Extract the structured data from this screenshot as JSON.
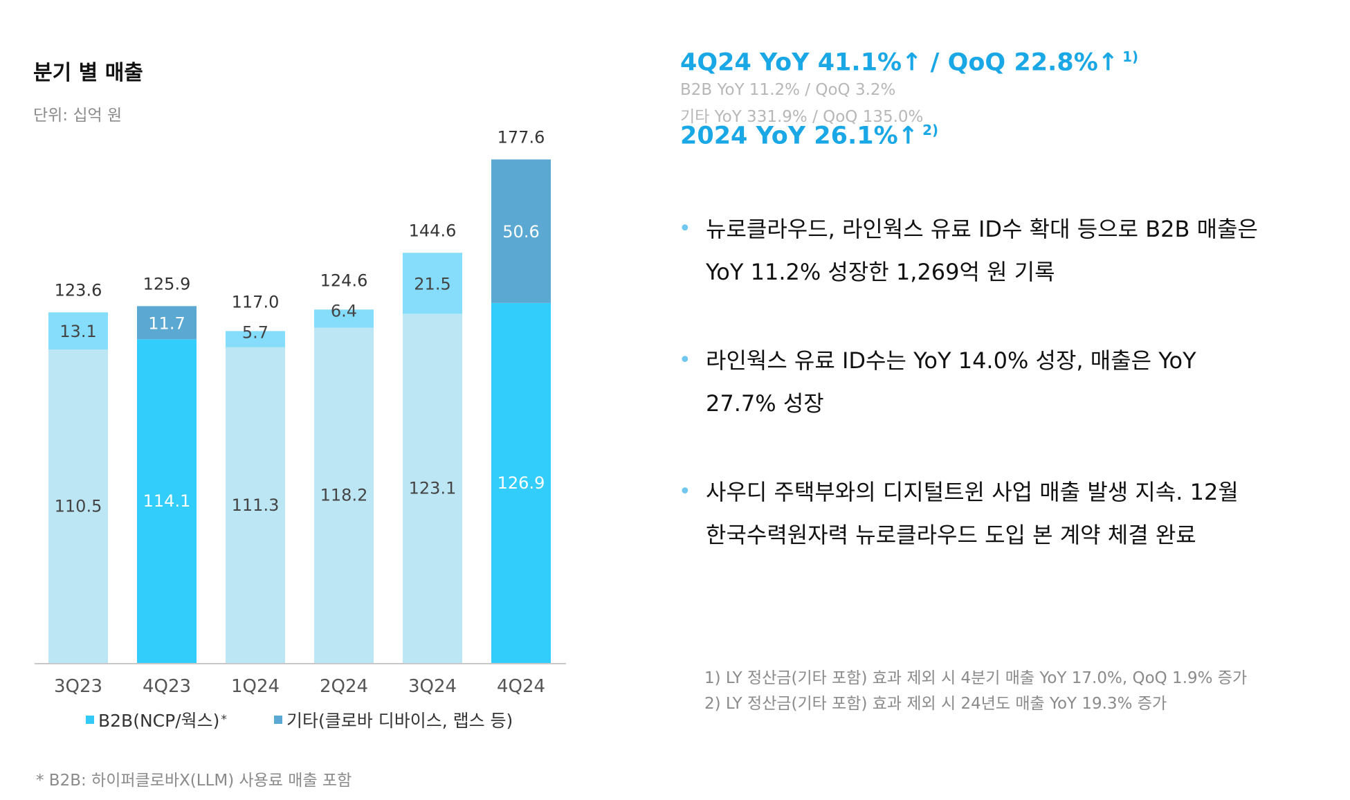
{
  "left": {
    "title": "분기 별 매출",
    "unit": "단위: 십억 원",
    "legend": [
      {
        "label": "B2B(NCP/웍스)",
        "sup": "*",
        "color": "#33c9f7"
      },
      {
        "label": "기타(클로바 디바이스, 랩스 등)",
        "color": "#5ba9d2"
      }
    ],
    "footnote": "* B2B: 하이퍼클로바X(LLM) 사용료 매출 포함"
  },
  "chart_data": {
    "type": "bar",
    "stacked": true,
    "categories": [
      "3Q23",
      "4Q23",
      "1Q24",
      "2Q24",
      "3Q24",
      "4Q24"
    ],
    "series": [
      {
        "name": "B2B(NCP/웍스)",
        "values": [
          110.5,
          114.1,
          111.3,
          118.2,
          123.1,
          126.9
        ],
        "labels": [
          "110.5",
          "114.1",
          "111.3",
          "118.2",
          "123.1",
          "126.9"
        ]
      },
      {
        "name": "기타(클로바 디바이스, 랩스 등)",
        "values": [
          13.1,
          11.7,
          5.7,
          6.4,
          21.5,
          50.6
        ],
        "labels": [
          "13.1",
          "11.7",
          "5.7",
          "6.4",
          "21.5",
          "50.6"
        ]
      }
    ],
    "totals": [
      123.6,
      125.9,
      117.0,
      124.6,
      144.6,
      177.6
    ],
    "total_labels": [
      "123.6",
      "125.9",
      "117.0",
      "124.6",
      "144.6",
      "177.6"
    ],
    "ylim": [
      0,
      177.6
    ],
    "colors": {
      "b2b_light": "#bde6f4",
      "b2b_strong": "#33cdfc",
      "etc_light": "#86dcfb",
      "etc_strong": "#5ba9d2",
      "label_on_light": "#444444",
      "label_on_strong": "#ffffff",
      "total": "#333333"
    },
    "highlight_b2b": [
      false,
      true,
      false,
      false,
      false,
      true
    ],
    "highlight_etc": [
      false,
      true,
      false,
      false,
      false,
      true
    ]
  },
  "right": {
    "headline1": {
      "text": "4Q24 YoY 41.1%↑  / QoQ 22.8%↑",
      "note": "1)"
    },
    "sub1": "B2B YoY 11.2% / QoQ 3.2%",
    "sub2": "기타 YoY 331.9% / QoQ 135.0%",
    "headline2": {
      "text": "2024 YoY 26.1%↑",
      "note": "2)"
    },
    "bullets": [
      {
        "line1": "뉴로클라우드, 라인웍스 유료 ID수 확대 등으로 B2B 매출은",
        "line2": "YoY 11.2% 성장한 1,269억 원 기록"
      },
      {
        "line1": "라인웍스 유료 ID수는 YoY 14.0% 성장, 매출은 YoY",
        "line2": "27.7% 성장"
      },
      {
        "line1": "사우디 주택부와의 디지털트윈 사업 매출 발생 지속. 12월",
        "line2": "한국수력원자력 뉴로클라우드 도입 본 계약 체결 완료"
      }
    ],
    "bullet_symbol": "•",
    "notes": [
      "1) LY 정산금(기타 포함) 효과 제외 시 4분기 매출 YoY 17.0%, QoQ 1.9% 증가",
      "2) LY 정산금(기타 포함)  효과 제외 시 24년도 매출 YoY 19.3% 증가"
    ]
  }
}
